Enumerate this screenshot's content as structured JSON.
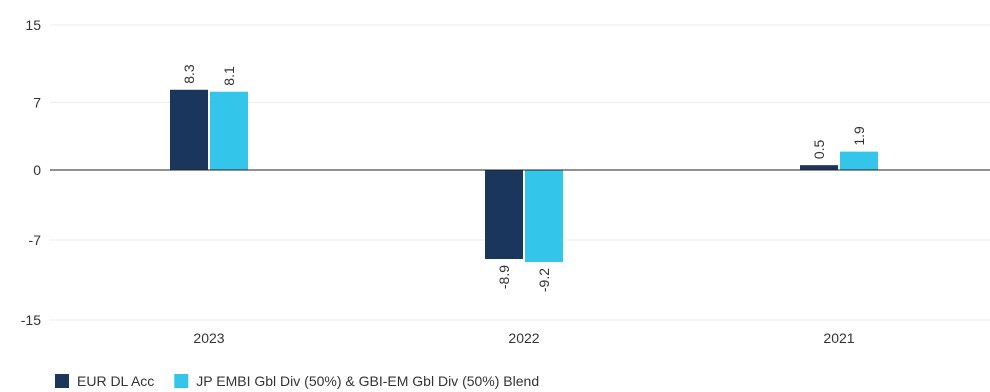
{
  "chart_data": {
    "type": "bar",
    "categories": [
      "2023",
      "2022",
      "2021"
    ],
    "series": [
      {
        "name": "EUR DL Acc",
        "values": [
          8.3,
          -8.9,
          0.5
        ],
        "color": "#1b365d"
      },
      {
        "name": "JP EMBI Gbl Div (50%) & GBI-EM Gbl Div (50%) Blend",
        "values": [
          8.1,
          -9.2,
          1.9
        ],
        "color": "#34c6ea"
      }
    ],
    "yticks": [
      15,
      7,
      0,
      -7,
      -15
    ],
    "ytick_labels": [
      "15",
      "7",
      "0",
      "-7",
      "-15"
    ],
    "ylim": [
      -15,
      15
    ],
    "grid": true,
    "legend_position": "bottom-left",
    "title": "",
    "xlabel": "",
    "ylabel": ""
  }
}
